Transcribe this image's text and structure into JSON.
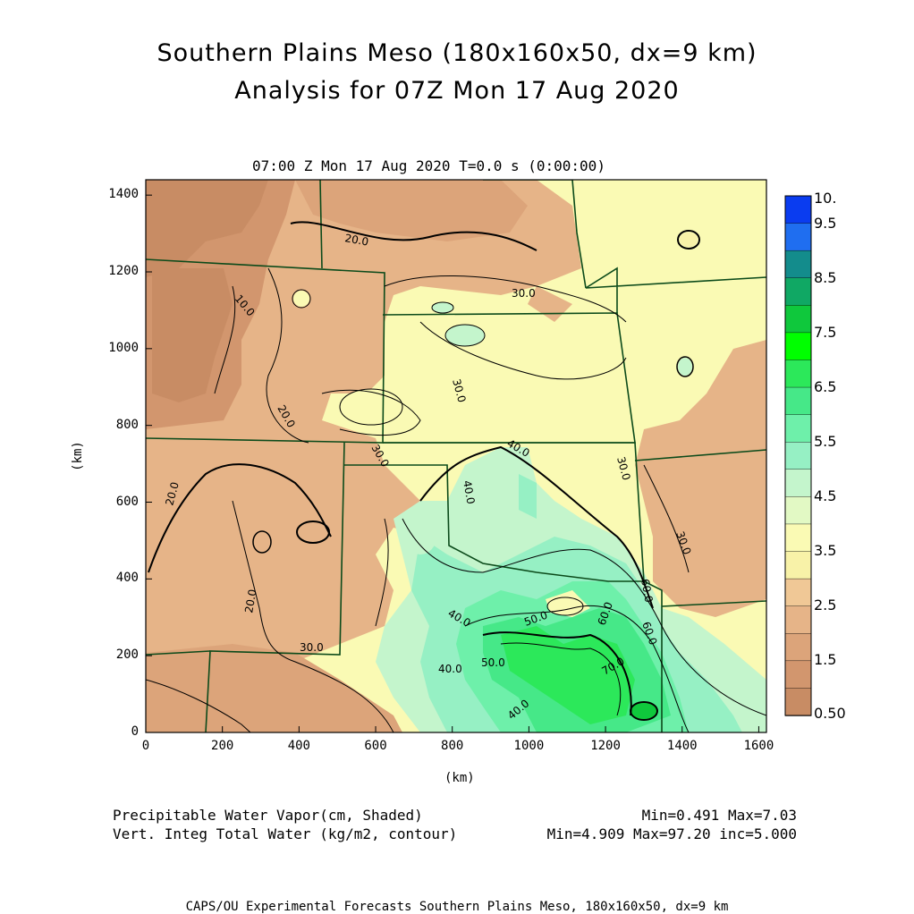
{
  "header": {
    "title1": "Southern Plains Meso (180x160x50, dx=9 km)",
    "title2": "Analysis for 07Z Mon 17 Aug 2020",
    "valid_time": "07:00 Z Mon 17 Aug 2020    T=0.0 s (0:00:00)"
  },
  "axes": {
    "x_ticks": [
      "0",
      "200",
      "400",
      "600",
      "800",
      "1000",
      "1200",
      "1400",
      "1600"
    ],
    "y_ticks": [
      "0",
      "200",
      "400",
      "600",
      "800",
      "1000",
      "1200",
      "1400"
    ],
    "x_unit": "(km)",
    "y_unit": "(km)",
    "xlim": [
      0,
      1620
    ],
    "ylim": [
      0,
      1440
    ]
  },
  "colorbar": {
    "labels": [
      "10.",
      "9.5",
      "8.5",
      "7.5",
      "6.5",
      "5.5",
      "4.5",
      "3.5",
      "2.5",
      "1.5",
      "0.50"
    ],
    "colors": [
      "#0a3cf0",
      "#1f6ef0",
      "#138c8c",
      "#10a864",
      "#0fc83c",
      "#00ff00",
      "#2ce85a",
      "#46e888",
      "#6ef0aa",
      "#96f0c4",
      "#c4f5cc",
      "#e2f9c4",
      "#fafab4",
      "#f8f2a8",
      "#f0c896",
      "#e6b488",
      "#dca47a",
      "#d2966e",
      "#c88c64"
    ]
  },
  "contour_labels": [
    {
      "text": "20.0"
    },
    {
      "text": "10.0"
    },
    {
      "text": "30.0"
    },
    {
      "text": "30.0"
    },
    {
      "text": "20.0"
    },
    {
      "text": "30.0"
    },
    {
      "text": "40.0"
    },
    {
      "text": "40.0"
    },
    {
      "text": "30.0"
    },
    {
      "text": "20.0"
    },
    {
      "text": "20.0"
    },
    {
      "text": "30.0"
    },
    {
      "text": "30.0"
    },
    {
      "text": "40.0"
    },
    {
      "text": "50.0"
    },
    {
      "text": "60.0"
    },
    {
      "text": "60.0"
    },
    {
      "text": "70.0"
    },
    {
      "text": "40.0"
    },
    {
      "text": "50.0"
    },
    {
      "text": "60.0"
    },
    {
      "text": "40.0"
    }
  ],
  "legend": {
    "shaded_label": "Precipitable Water Vapor(cm, Shaded)",
    "shaded_stats": "Min=0.491 Max=7.03",
    "contour_label": "Vert. Integ Total Water (kg/m2, contour)",
    "contour_stats": "Min=4.909 Max=97.20 inc=5.000"
  },
  "footer": "CAPS/OU Experimental Forecasts  Southern Plains Meso, 180x160x50, dx=9 km"
}
